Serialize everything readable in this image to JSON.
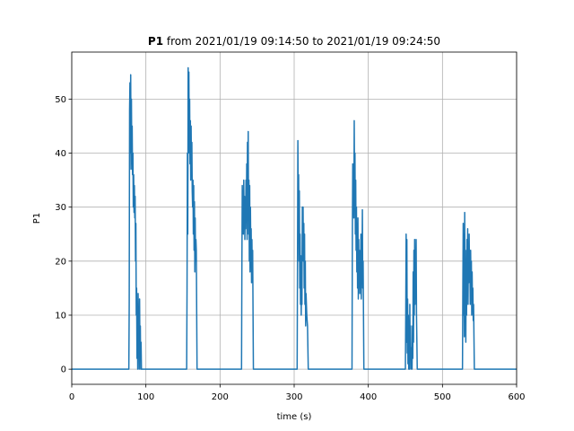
{
  "chart_data": {
    "type": "line",
    "title_bold": "P1",
    "title": "from 2021/01/19 09:14:50 to 2021/01/19 09:24:50",
    "xlabel": "time (s)",
    "ylabel": "P1",
    "xlim": [
      0,
      600
    ],
    "xticks": [
      0,
      100,
      200,
      300,
      400,
      500,
      600
    ],
    "ylim": [
      -2.8,
      58.7
    ],
    "yticks": [
      0,
      10,
      20,
      30,
      40,
      50
    ],
    "grid": true,
    "series": [
      {
        "color": "#1f77b4",
        "x": [
          0,
          77,
          77.5,
          78,
          78.5,
          79,
          79.5,
          80,
          80.5,
          81,
          81.5,
          82,
          82.5,
          83,
          83.5,
          84,
          84.5,
          85,
          85.5,
          86,
          86.5,
          87,
          87.5,
          88,
          88.5,
          89,
          89.5,
          90,
          90.5,
          91,
          91.5,
          92,
          92.5,
          93,
          93.5,
          94,
          95,
          155,
          155.5,
          156,
          156.5,
          157,
          157.5,
          158,
          158.5,
          159,
          159.5,
          160,
          160.5,
          161,
          161.5,
          162,
          162.5,
          163,
          163.5,
          164,
          164.5,
          165,
          165.5,
          166,
          166.5,
          167,
          167.5,
          168,
          169,
          229,
          229.5,
          230,
          230.5,
          231,
          231.5,
          232,
          232.5,
          233,
          233.5,
          234,
          234.5,
          235,
          235.5,
          236,
          236.5,
          237,
          237.5,
          238,
          238.5,
          239,
          239.5,
          240,
          240.5,
          241,
          241.5,
          242,
          242.5,
          243,
          243.5,
          244,
          245,
          304,
          304.5,
          305,
          305.5,
          306,
          306.5,
          307,
          307.5,
          308,
          308.5,
          309,
          309.5,
          310,
          310.5,
          311,
          311.5,
          312,
          312.5,
          313,
          313.5,
          314,
          314.5,
          315,
          315.5,
          316,
          317,
          318,
          319,
          378,
          378.5,
          379,
          379.5,
          380,
          380.5,
          381,
          381.5,
          382,
          382.5,
          383,
          383.5,
          384,
          384.5,
          385,
          385.5,
          386,
          386.5,
          387,
          387.5,
          388,
          388.5,
          389,
          389.5,
          390,
          390.5,
          391,
          391.5,
          392,
          392.5,
          393,
          394,
          450,
          450.5,
          451,
          451.5,
          452,
          452.5,
          453,
          453.5,
          454,
          454.5,
          455,
          455.5,
          456,
          456.5,
          457,
          457.5,
          458,
          459,
          459.5,
          460,
          460.5,
          461,
          461.5,
          462,
          462.5,
          463,
          463.5,
          464,
          464.5,
          465,
          466,
          527,
          527.5,
          528,
          528.5,
          529,
          529.5,
          530,
          530.5,
          531,
          531.5,
          532,
          532.5,
          533,
          533.5,
          534,
          534.5,
          535,
          535.5,
          536,
          536.5,
          537,
          537.5,
          538,
          538.5,
          539,
          539.5,
          540,
          540.5,
          541,
          541.5,
          542,
          543,
          600
        ],
        "values": [
          0,
          0,
          12,
          48,
          53,
          40,
          54.5,
          37,
          50,
          38,
          45,
          36,
          40,
          30,
          36,
          29,
          34,
          28,
          32,
          20,
          27,
          10,
          15,
          2,
          12,
          0,
          14,
          4,
          10,
          0,
          13,
          3,
          8,
          0,
          5,
          0,
          0,
          0,
          15,
          40,
          25,
          55.8,
          42,
          55,
          40,
          50,
          38,
          46,
          35,
          45,
          36,
          42,
          33,
          30,
          35,
          25,
          34,
          22,
          31,
          18,
          28,
          20,
          24,
          22,
          0,
          0,
          20,
          34,
          28,
          33,
          25,
          35,
          27,
          32,
          24,
          30,
          26,
          35,
          28,
          38,
          24,
          42,
          30,
          44,
          25,
          35,
          20,
          34,
          18,
          30,
          22,
          26,
          16,
          24,
          18,
          22,
          0,
          0,
          20,
          42.3,
          30,
          36,
          20,
          33,
          15,
          25,
          12,
          21,
          10,
          18,
          12,
          30,
          22,
          30,
          20,
          27,
          15,
          25,
          12,
          20,
          8,
          14,
          10,
          8,
          0,
          0,
          25,
          38,
          30,
          36,
          28,
          46,
          32,
          40,
          25,
          35,
          22,
          30,
          18,
          27,
          15,
          28,
          13,
          24,
          16,
          22,
          14,
          20,
          17,
          25,
          13,
          22,
          18,
          29.5,
          15,
          20,
          0,
          0,
          10,
          25,
          5,
          24,
          3,
          13,
          1,
          10,
          0,
          5,
          0,
          12,
          2,
          8,
          0,
          4,
          0,
          8,
          2,
          18,
          5,
          22,
          10,
          24,
          12,
          20,
          15,
          24,
          10,
          0,
          0,
          15,
          27,
          10,
          25,
          6,
          29,
          12,
          22,
          5,
          20,
          10,
          24,
          14,
          26,
          12,
          22,
          16,
          25,
          18,
          20,
          12,
          22,
          15,
          20,
          10,
          18,
          12,
          15,
          9,
          12,
          0,
          0
        ]
      }
    ]
  }
}
